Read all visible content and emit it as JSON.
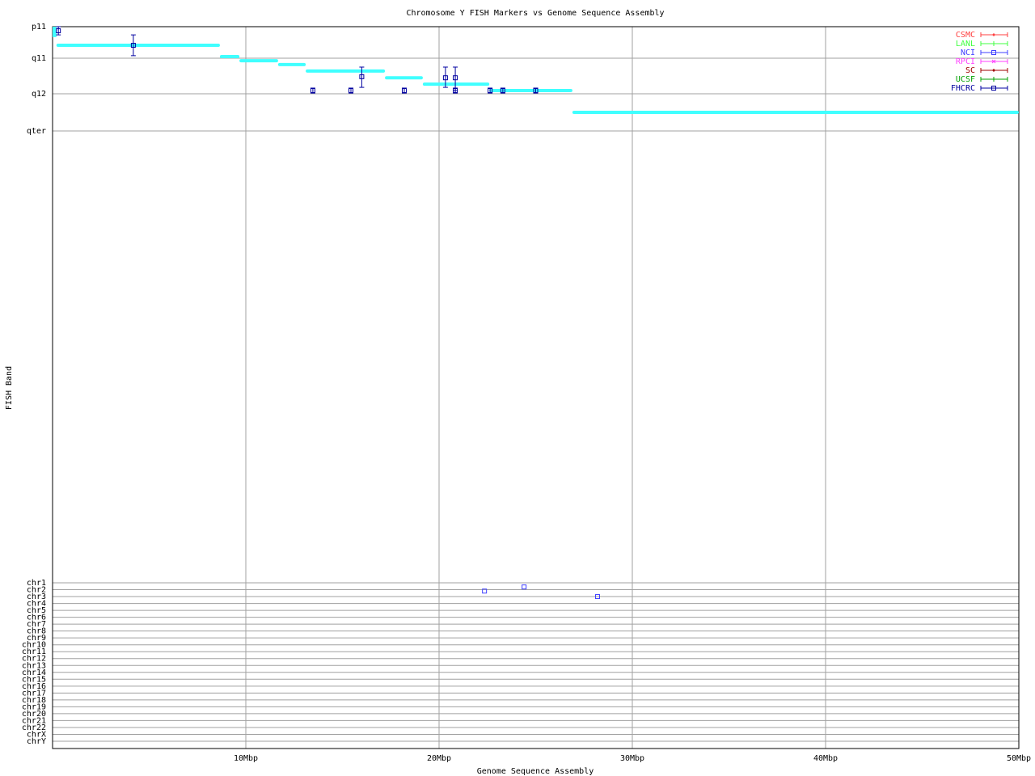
{
  "chart_data": {
    "type": "scatter",
    "title": "Chromosome Y FISH Markers vs Genome Sequence Assembly",
    "xlabel": "Genome Sequence Assembly",
    "ylabel": "FISH Band",
    "xlim": [
      0,
      50
    ],
    "x_ticks": [
      {
        "value": 10,
        "label": "10Mbp"
      },
      {
        "value": 20,
        "label": "20Mbp"
      },
      {
        "value": 30,
        "label": "30Mbp"
      },
      {
        "value": 40,
        "label": "40Mbp"
      },
      {
        "value": 50,
        "label": "50Mbp"
      }
    ],
    "grid": true,
    "band_ticks": [
      "p11",
      "q11",
      "q12",
      "qter"
    ],
    "chrom_ticks": [
      "chr1",
      "chr2",
      "chr3",
      "chr4",
      "chr5",
      "chr6",
      "chr7",
      "chr8",
      "chr9",
      "chr10",
      "chr11",
      "chr12",
      "chr13",
      "chr14",
      "chr15",
      "chr16",
      "chr17",
      "chr18",
      "chr19",
      "chr20",
      "chr21",
      "chr22",
      "chrX",
      "chrY"
    ],
    "legend_placement": "top-right",
    "legend": [
      {
        "name": "CSMC",
        "color": "#ff4040",
        "marker": "diamond"
      },
      {
        "name": "LANL",
        "color": "#40ff40",
        "marker": "plus"
      },
      {
        "name": "NCI",
        "color": "#4040ff",
        "marker": "square"
      },
      {
        "name": "RPCI",
        "color": "#ff40ff",
        "marker": "cross"
      },
      {
        "name": "SC",
        "color": "#a00000",
        "marker": "diamond"
      },
      {
        "name": "UCSF",
        "color": "#00a000",
        "marker": "plus"
      },
      {
        "name": "FHCRC",
        "color": "#0000a0",
        "marker": "square"
      }
    ],
    "band_segments_color": "#40ffff",
    "band_segments": [
      {
        "x0": 0.0,
        "x1": 0.2,
        "band0": 0.0,
        "band1": 0.33
      },
      {
        "x0": 0.2,
        "x1": 8.66,
        "band": 0.59
      },
      {
        "x0": 8.66,
        "x1": 9.67,
        "band": 0.95
      },
      {
        "x0": 9.67,
        "x1": 11.67,
        "band": 1.07
      },
      {
        "x0": 11.67,
        "x1": 13.1,
        "band": 1.18
      },
      {
        "x0": 13.1,
        "x1": 17.2,
        "band": 1.36
      },
      {
        "x0": 17.2,
        "x1": 19.16,
        "band": 1.55
      },
      {
        "x0": 19.16,
        "x1": 22.6,
        "band": 1.73
      },
      {
        "x0": 22.6,
        "x1": 26.9,
        "band": 1.91
      },
      {
        "x0": 26.9,
        "x1": 50.0,
        "band": 2.5
      }
    ],
    "series": [
      {
        "name": "FHCRC",
        "points": [
          {
            "x": 0.3,
            "band": 0.13,
            "lo": 0.0,
            "hi": 0.26
          },
          {
            "x": 4.18,
            "band": 0.59,
            "lo": 0.26,
            "hi": 0.92
          },
          {
            "x": 13.47,
            "band": 1.91,
            "lo": 1.84,
            "hi": 1.98
          },
          {
            "x": 15.44,
            "band": 1.91,
            "lo": 1.84,
            "hi": 1.98
          },
          {
            "x": 16.0,
            "band": 1.52,
            "lo": 1.25,
            "hi": 1.82
          },
          {
            "x": 18.2,
            "band": 1.91,
            "lo": 1.84,
            "hi": 1.98
          },
          {
            "x": 20.33,
            "band": 1.55,
            "lo": 1.25,
            "hi": 1.82
          },
          {
            "x": 20.84,
            "band": 1.55,
            "lo": 1.25,
            "hi": 1.91
          },
          {
            "x": 20.84,
            "band": 1.91,
            "lo": 1.84,
            "hi": 1.98
          },
          {
            "x": 22.64,
            "band": 1.91,
            "lo": 1.84,
            "hi": 1.98
          },
          {
            "x": 23.3,
            "band": 1.91,
            "lo": 1.84,
            "hi": 1.98
          },
          {
            "x": 25.0,
            "band": 1.91,
            "lo": 1.84,
            "hi": 1.98
          }
        ]
      },
      {
        "name": "NCI",
        "panel": "chromosome",
        "points": [
          {
            "x": 22.35,
            "chrom": 2.2
          },
          {
            "x": 24.4,
            "chrom": 1.6
          },
          {
            "x": 28.2,
            "chrom": 3.0
          }
        ]
      }
    ]
  }
}
